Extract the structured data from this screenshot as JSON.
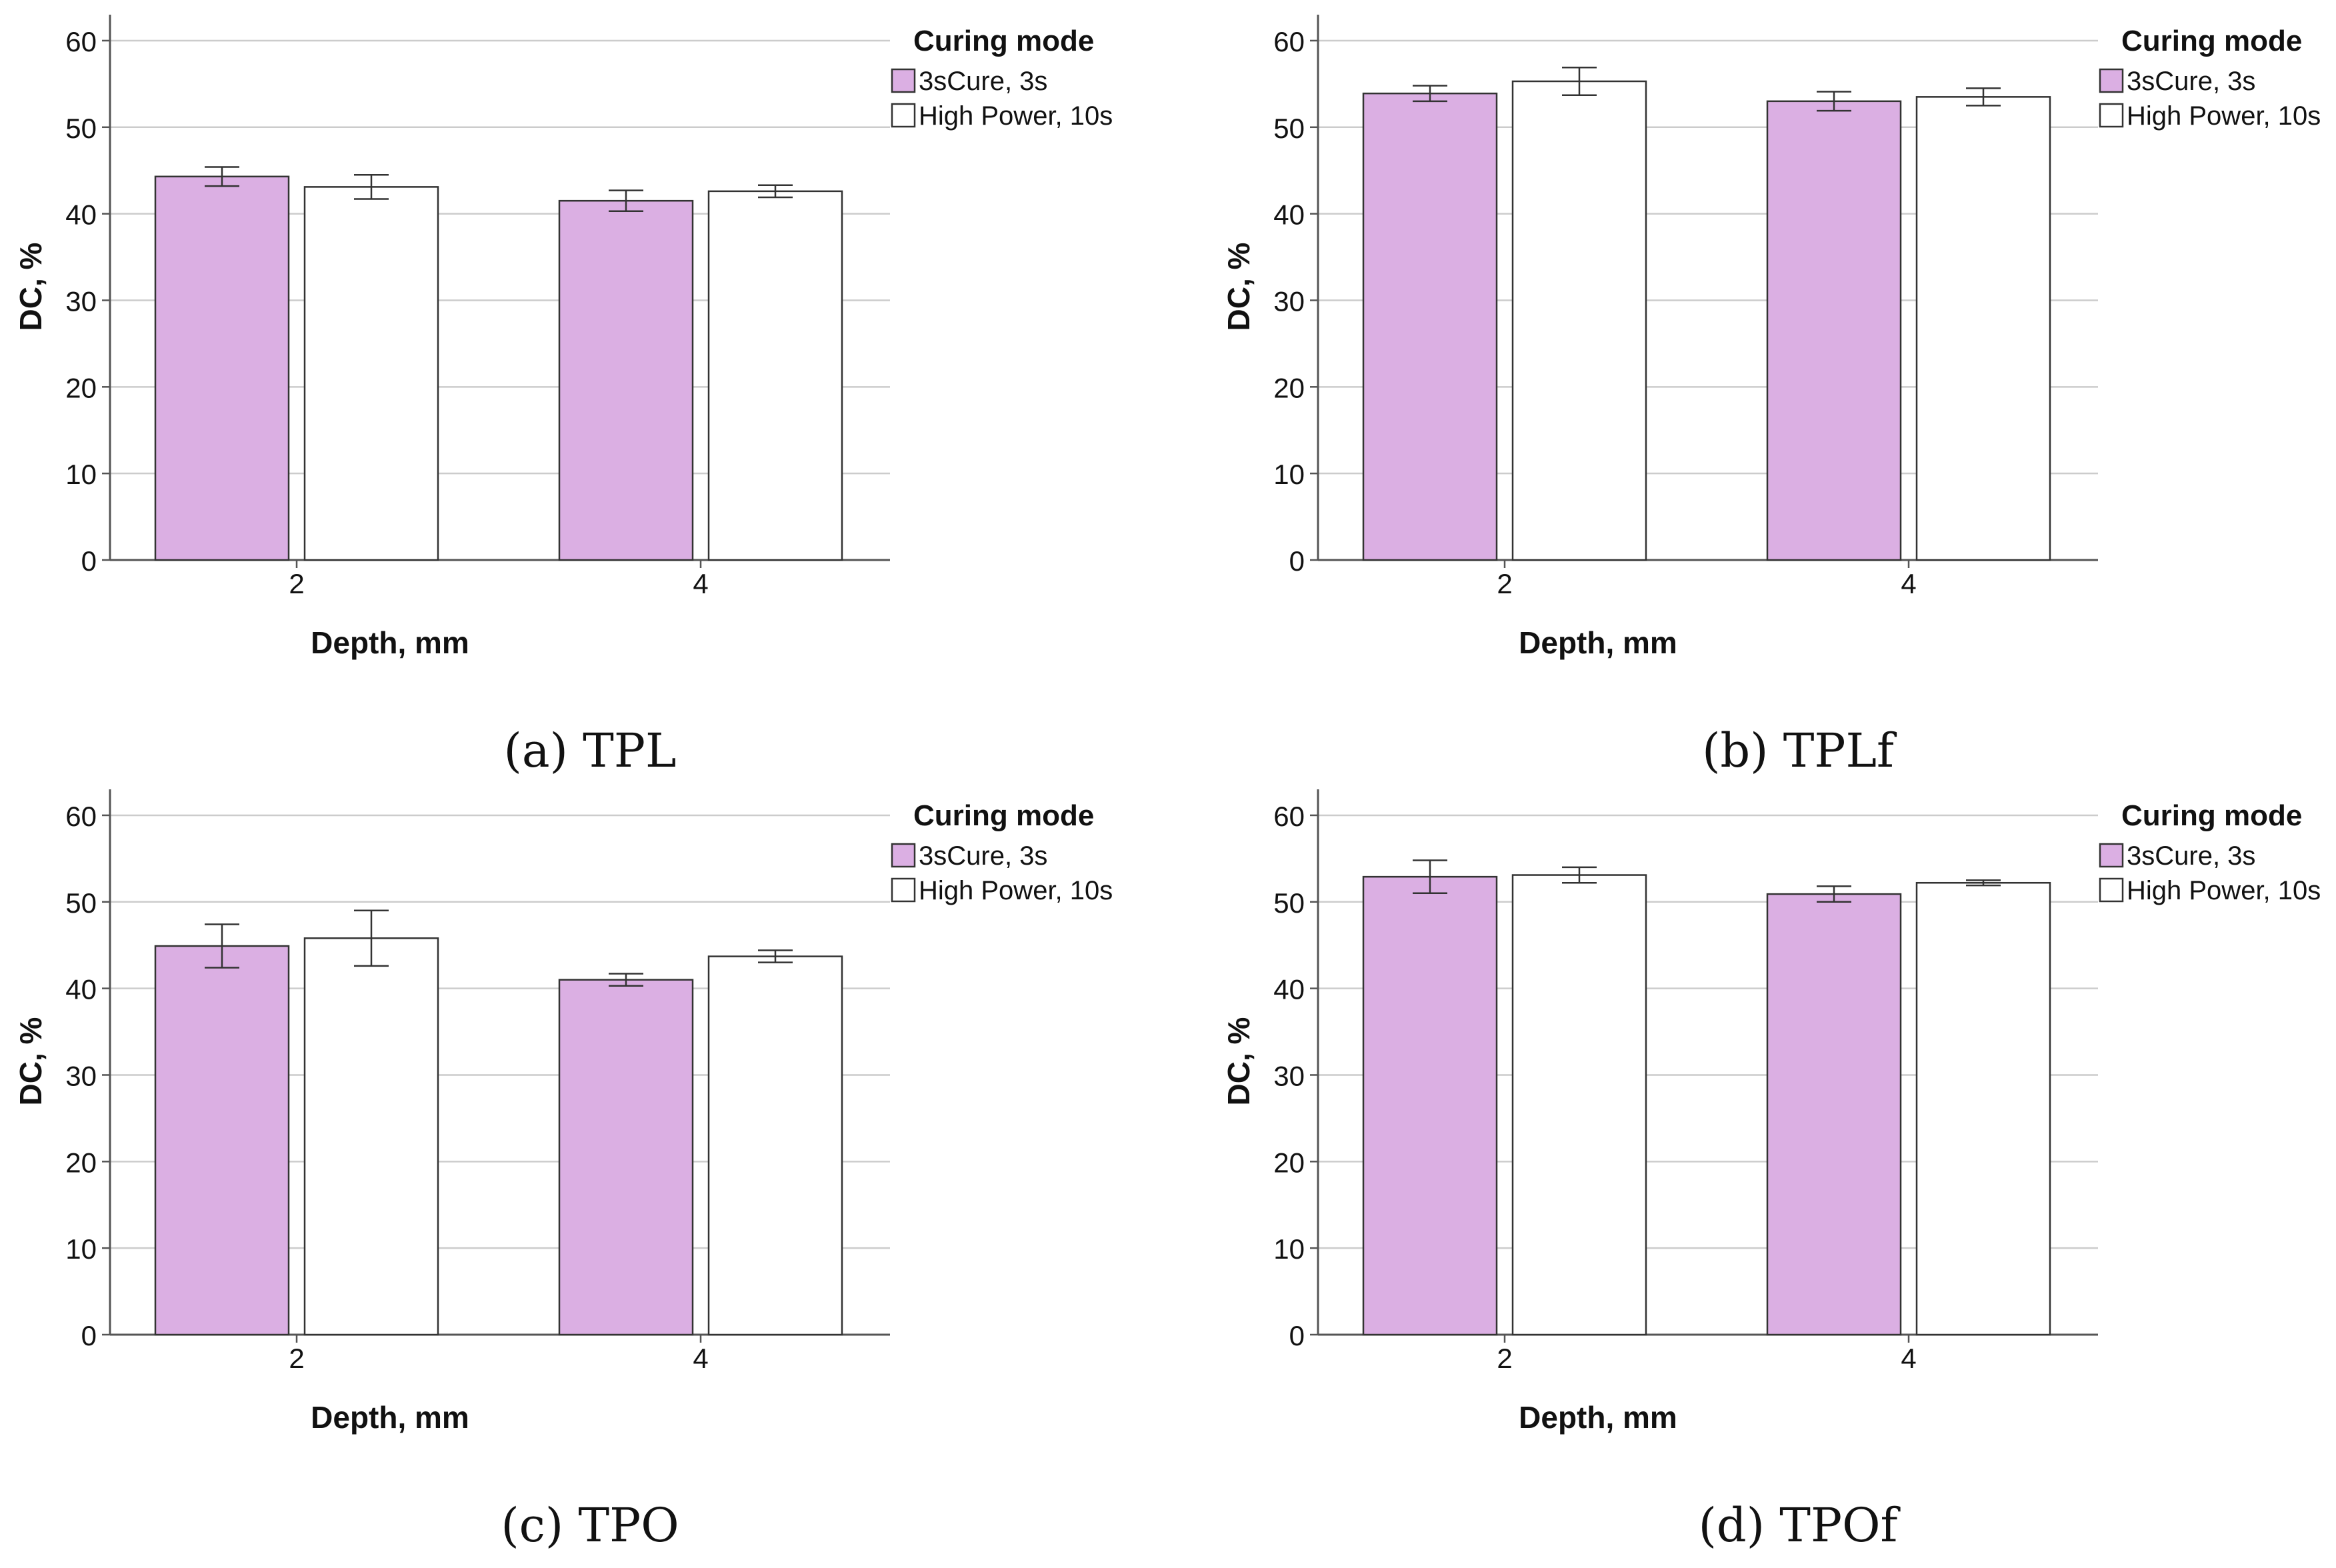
{
  "figure": {
    "panels": [
      {
        "caption": "(a) TPL",
        "chart_data": {
          "type": "bar",
          "categories": [
            "2",
            "4"
          ],
          "series": [
            {
              "name": "3sCure, 3s",
              "values": [
                44.3,
                41.5
              ],
              "error_low": [
                43.2,
                40.3
              ],
              "error_high": [
                45.4,
                42.7
              ]
            },
            {
              "name": "High Power, 10s",
              "values": [
                43.1,
                42.6
              ],
              "error_low": [
                41.7,
                41.9
              ],
              "error_high": [
                44.5,
                43.3
              ]
            }
          ],
          "title": "",
          "xlabel": "Depth, mm",
          "ylabel": "DC, %",
          "ylim": [
            0,
            63
          ],
          "yticks": [
            0,
            10,
            20,
            30,
            40,
            50,
            60
          ],
          "legend_title": "Curing mode",
          "legend_position": "top-right",
          "grid": true
        }
      },
      {
        "caption": "(b) TPLf",
        "chart_data": {
          "type": "bar",
          "categories": [
            "2",
            "4"
          ],
          "series": [
            {
              "name": "3sCure, 3s",
              "values": [
                53.9,
                53.0
              ],
              "error_low": [
                53.0,
                51.9
              ],
              "error_high": [
                54.8,
                54.1
              ]
            },
            {
              "name": "High Power, 10s",
              "values": [
                55.3,
                53.5
              ],
              "error_low": [
                53.7,
                52.5
              ],
              "error_high": [
                56.9,
                54.5
              ]
            }
          ],
          "title": "",
          "xlabel": "Depth, mm",
          "ylabel": "DC, %",
          "ylim": [
            0,
            63
          ],
          "yticks": [
            0,
            10,
            20,
            30,
            40,
            50,
            60
          ],
          "legend_title": "Curing mode",
          "legend_position": "top-right",
          "grid": true
        }
      },
      {
        "caption": "(c) TPO",
        "chart_data": {
          "type": "bar",
          "categories": [
            "2",
            "4"
          ],
          "series": [
            {
              "name": "3sCure, 3s",
              "values": [
                44.9,
                41.0
              ],
              "error_low": [
                42.4,
                40.3
              ],
              "error_high": [
                47.4,
                41.7
              ]
            },
            {
              "name": "High Power, 10s",
              "values": [
                45.8,
                43.7
              ],
              "error_low": [
                42.6,
                43.0
              ],
              "error_high": [
                49.0,
                44.4
              ]
            }
          ],
          "title": "",
          "xlabel": "Depth, mm",
          "ylabel": "DC, %",
          "ylim": [
            0,
            63
          ],
          "yticks": [
            0,
            10,
            20,
            30,
            40,
            50,
            60
          ],
          "legend_title": "Curing mode",
          "legend_position": "top-right",
          "grid": true
        }
      },
      {
        "caption": "(d) TPOf",
        "chart_data": {
          "type": "bar",
          "categories": [
            "2",
            "4"
          ],
          "series": [
            {
              "name": "3sCure, 3s",
              "values": [
                52.9,
                50.9
              ],
              "error_low": [
                51.0,
                50.0
              ],
              "error_high": [
                54.8,
                51.8
              ]
            },
            {
              "name": "High Power, 10s",
              "values": [
                53.1,
                52.2
              ],
              "error_low": [
                52.2,
                51.9
              ],
              "error_high": [
                54.0,
                52.5
              ]
            }
          ],
          "title": "",
          "xlabel": "Depth, mm",
          "ylabel": "DC, %",
          "ylim": [
            0,
            63
          ],
          "yticks": [
            0,
            10,
            20,
            30,
            40,
            50,
            60
          ],
          "legend_title": "Curing mode",
          "legend_position": "top-right",
          "grid": true
        }
      }
    ]
  },
  "colors": {
    "series_fills": [
      "#dbafe3",
      "#ffffff"
    ],
    "bar_stroke": "#333333",
    "grid": "#cccccc",
    "axis": "#555555",
    "text": "#111111",
    "error_bar": "#333333"
  }
}
